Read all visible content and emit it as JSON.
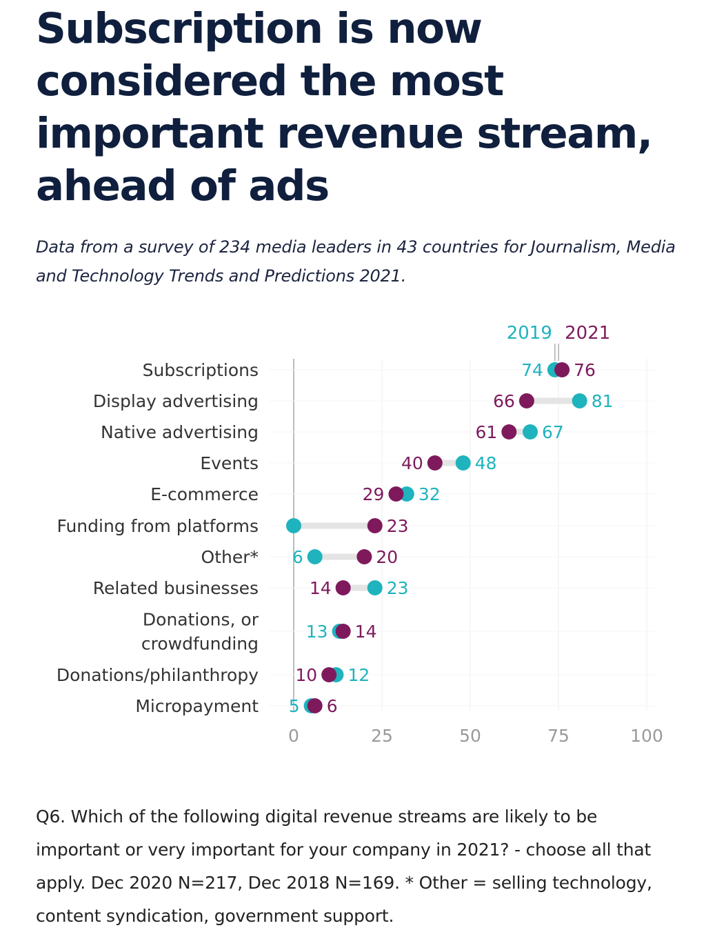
{
  "title": "Subscription is now considered the most important revenue stream, ahead of ads",
  "subtitle": "Data from a survey of 234 media leaders in 43 countries for Journalism, Media and Technology Trends and Predictions 2021.",
  "footnote": "Q6. Which of the following digital revenue streams are likely to be important or very important for your company in 2021? - choose all that apply. Dec 2020 N=217, Dec 2018 N=169. * Other = selling technology, content syndication, government support.",
  "colors": {
    "series_2019": "#1fb3bd",
    "series_2021": "#7e1a5c",
    "connector": "#e4e4e4",
    "grid": "#eeeeee",
    "axis": "#999999",
    "tick": "#999999",
    "label": "#333333"
  },
  "chart_data": {
    "type": "dumbbell",
    "xlim": [
      0,
      100
    ],
    "xticks": [
      0,
      25,
      50,
      75,
      100
    ],
    "categories": [
      [
        "Subscriptions"
      ],
      [
        "Display advertising"
      ],
      [
        "Native advertising"
      ],
      [
        "Events"
      ],
      [
        "E-commerce"
      ],
      [
        "Funding from platforms"
      ],
      [
        "Other*"
      ],
      [
        "Related businesses"
      ],
      [
        "Donations, or",
        "crowdfunding"
      ],
      [
        "Donations/philanthropy"
      ],
      [
        "Micropayment"
      ]
    ],
    "series": [
      {
        "name": "2019",
        "values": [
          74,
          81,
          67,
          48,
          32,
          0,
          6,
          23,
          13,
          12,
          5
        ],
        "labels": [
          "74",
          "81",
          "67",
          "48",
          "32",
          "",
          "6",
          "23",
          "13",
          "12",
          "5"
        ]
      },
      {
        "name": "2021",
        "values": [
          76,
          66,
          61,
          40,
          29,
          23,
          20,
          14,
          14,
          10,
          6
        ],
        "labels": [
          "76",
          "66",
          "61",
          "40",
          "29",
          "23",
          "20",
          "14",
          "14",
          "10",
          "6"
        ]
      }
    ]
  }
}
